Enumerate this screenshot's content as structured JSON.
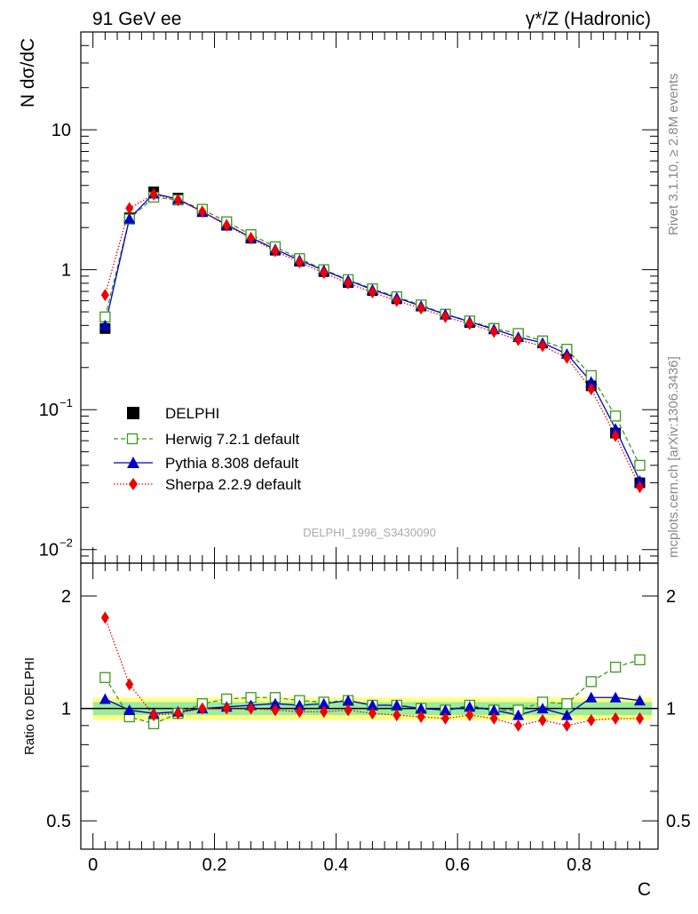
{
  "header": {
    "left_title": "91 GeV ee",
    "right_title": "γ*/Z (Hadronic)"
  },
  "side_labels": {
    "top": "Rivet 3.1.10, ≥ 2.8M events",
    "bottom": "mcplots.cern.ch [arXiv:1306.3436]"
  },
  "analysis_label": "DELPHI_1996_S3430090",
  "legend": [
    {
      "key": "delphi",
      "label": "DELPHI"
    },
    {
      "key": "herwig",
      "label": "Herwig 7.2.1 default"
    },
    {
      "key": "pythia",
      "label": "Pythia 8.308 default"
    },
    {
      "key": "sherpa",
      "label": "Sherpa 2.2.9 default"
    }
  ],
  "colors": {
    "delphi": "#000000",
    "herwig": "#3a9a1a",
    "pythia": "#0000cc",
    "sherpa": "#ee0000",
    "band_inner": "#99ee99",
    "band_outer": "#ffff88"
  },
  "chart_data": [
    {
      "type": "line",
      "panel": "main",
      "ylabel": "N dσ/dC",
      "yscale": "log",
      "ylim": [
        0.008,
        50
      ],
      "xlim": [
        -0.02,
        0.93
      ],
      "y_ticks": [
        {
          "value": 10,
          "label": "10"
        },
        {
          "value": 1,
          "label": "1"
        },
        {
          "value": 0.1,
          "label": "10",
          "exp": "−1"
        },
        {
          "value": 0.01,
          "label": "10",
          "exp": "−2"
        }
      ],
      "x": [
        0.02,
        0.06,
        0.1,
        0.14,
        0.18,
        0.22,
        0.26,
        0.3,
        0.34,
        0.38,
        0.42,
        0.46,
        0.5,
        0.54,
        0.58,
        0.62,
        0.66,
        0.7,
        0.74,
        0.78,
        0.82,
        0.86,
        0.9
      ],
      "series": [
        {
          "name": "DELPHI",
          "key": "delphi",
          "values": [
            0.38,
            2.35,
            3.6,
            3.25,
            2.6,
            2.08,
            1.68,
            1.38,
            1.15,
            0.97,
            0.81,
            0.71,
            0.62,
            0.55,
            0.48,
            0.42,
            0.38,
            0.345,
            0.3,
            0.26,
            0.148,
            0.068,
            0.03
          ]
        },
        {
          "name": "Herwig 7.2.1 default",
          "key": "herwig",
          "values": [
            0.46,
            2.3,
            3.3,
            3.15,
            2.7,
            2.2,
            1.78,
            1.46,
            1.2,
            1.0,
            0.85,
            0.73,
            0.64,
            0.56,
            0.48,
            0.43,
            0.38,
            0.35,
            0.31,
            0.27,
            0.175,
            0.09,
            0.04
          ]
        },
        {
          "name": "Pythia 8.308 default",
          "key": "pythia",
          "values": [
            0.4,
            2.32,
            3.5,
            3.2,
            2.6,
            2.1,
            1.7,
            1.4,
            1.17,
            0.99,
            0.84,
            0.72,
            0.63,
            0.55,
            0.48,
            0.425,
            0.375,
            0.33,
            0.3,
            0.25,
            0.158,
            0.073,
            0.031
          ]
        },
        {
          "name": "Sherpa 2.2.9 default",
          "key": "sherpa",
          "values": [
            0.66,
            2.75,
            3.45,
            3.15,
            2.6,
            2.07,
            1.68,
            1.36,
            1.13,
            0.95,
            0.8,
            0.69,
            0.6,
            0.53,
            0.46,
            0.41,
            0.36,
            0.315,
            0.285,
            0.235,
            0.14,
            0.065,
            0.028
          ]
        }
      ]
    },
    {
      "type": "line",
      "panel": "ratio",
      "ylabel": "Ratio to DELPHI",
      "xlabel": "C",
      "yscale": "log",
      "ylim": [
        0.42,
        2.45
      ],
      "xlim": [
        -0.02,
        0.93
      ],
      "y_ticks": [
        {
          "value": 2,
          "label": "2"
        },
        {
          "value": 1,
          "label": "1"
        },
        {
          "value": 0.5,
          "label": "0.5"
        }
      ],
      "x_ticks": [
        {
          "value": 0,
          "label": "0"
        },
        {
          "value": 0.2,
          "label": "0.2"
        },
        {
          "value": 0.4,
          "label": "0.4"
        },
        {
          "value": 0.6,
          "label": "0.6"
        },
        {
          "value": 0.8,
          "label": "0.8"
        }
      ],
      "band": {
        "inner": [
          0.96,
          1.04
        ],
        "outer": [
          0.93,
          1.07
        ]
      },
      "x": [
        0.02,
        0.06,
        0.1,
        0.14,
        0.18,
        0.22,
        0.26,
        0.3,
        0.34,
        0.38,
        0.42,
        0.46,
        0.5,
        0.54,
        0.58,
        0.62,
        0.66,
        0.7,
        0.74,
        0.78,
        0.82,
        0.86,
        0.9
      ],
      "series": [
        {
          "name": "Herwig 7.2.1 default",
          "key": "herwig",
          "values": [
            1.21,
            0.95,
            0.91,
            0.97,
            1.03,
            1.06,
            1.07,
            1.07,
            1.05,
            1.04,
            1.05,
            1.02,
            1.02,
            1.0,
            0.99,
            1.02,
            0.99,
            0.99,
            1.04,
            1.03,
            1.18,
            1.29,
            1.35
          ]
        },
        {
          "name": "Pythia 8.308 default",
          "key": "pythia",
          "values": [
            1.06,
            0.99,
            0.97,
            0.98,
            1.0,
            1.01,
            1.02,
            1.03,
            1.02,
            1.03,
            1.05,
            1.02,
            1.02,
            1.0,
            0.99,
            1.01,
            0.99,
            0.96,
            1.0,
            0.96,
            1.07,
            1.07,
            1.05
          ]
        },
        {
          "name": "Sherpa 2.2.9 default",
          "key": "sherpa",
          "values": [
            1.75,
            1.16,
            0.96,
            0.97,
            1.0,
            1.0,
            1.0,
            0.99,
            0.98,
            0.98,
            0.99,
            0.97,
            0.96,
            0.95,
            0.94,
            0.96,
            0.94,
            0.9,
            0.93,
            0.9,
            0.93,
            0.94,
            0.94
          ]
        }
      ]
    }
  ]
}
